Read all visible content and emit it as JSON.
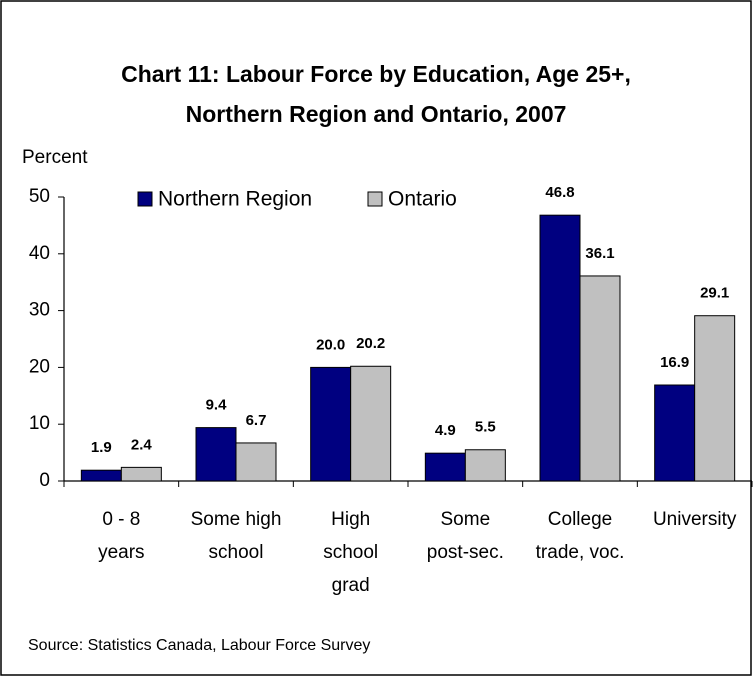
{
  "chart_data": {
    "type": "bar",
    "title": "Chart 11: Labour Force by Education, Age 25+,\nNorthern Region and Ontario, 2007",
    "y_label": "Percent",
    "categories": [
      "0 - 8\nyears",
      "Some high\nschool",
      "High\nschool\ngrad",
      "Some\npost-sec.",
      "College\ntrade, voc.",
      "University"
    ],
    "series": [
      {
        "name": "Northern Region",
        "color": "#000080",
        "values": [
          1.9,
          9.4,
          20,
          4.9,
          46.8,
          16.9
        ],
        "value_labels": [
          "1.9",
          "9.4",
          "20.0",
          "4.9",
          "46.8",
          "16.9"
        ]
      },
      {
        "name": "Ontario",
        "color": "#c0c0c0",
        "values": [
          2.4,
          6.7,
          20.2,
          5.5,
          36.1,
          29.1
        ],
        "value_labels": [
          "2.4",
          "6.7",
          "20.2",
          "5.5",
          "36.1",
          "29.1"
        ]
      }
    ],
    "ylim": [
      0,
      50
    ],
    "yticks": [
      0,
      10,
      20,
      30,
      40,
      50
    ],
    "grid": false,
    "legend": "top",
    "source": "Source: Statistics Canada, Labour Force Survey"
  }
}
